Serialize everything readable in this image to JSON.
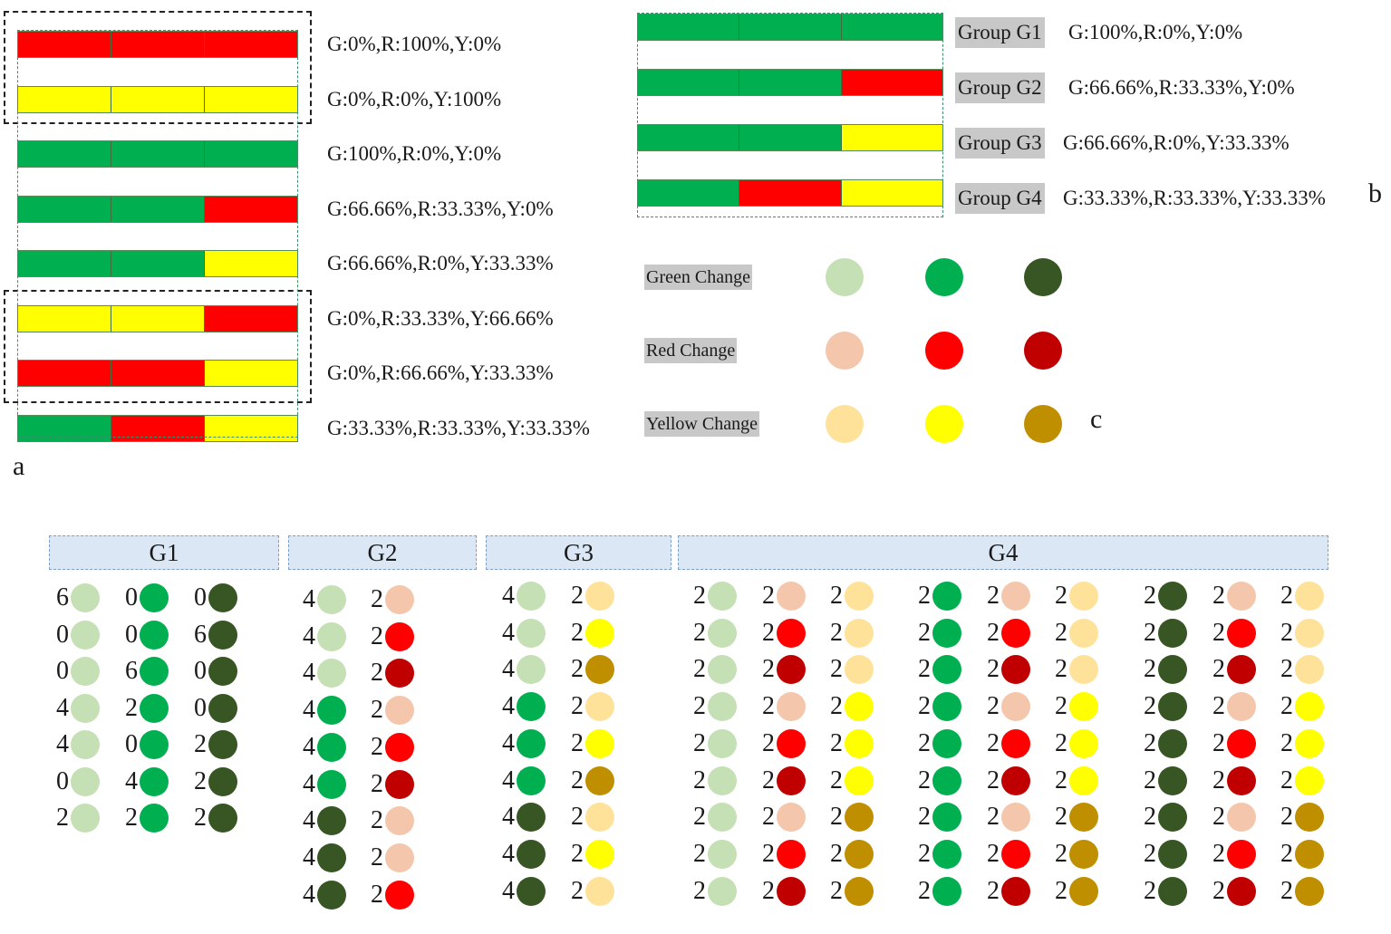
{
  "colors": {
    "green": "#00b050",
    "red": "#ff0000",
    "yellow": "#ffff00",
    "light_green": "#c5e0b4",
    "dark_green": "#375623",
    "light_red": "#f4c7ad",
    "dark_red": "#c00000",
    "light_yellow": "#ffe29a",
    "dark_yellow": "#bf8f00",
    "header_fill": "#dbe7f4"
  },
  "panel_a": {
    "letter": "a",
    "rows": [
      {
        "segments": [
          "red",
          "red",
          "red"
        ],
        "label": "G:0%,R:100%,Y:0%"
      },
      {
        "segments": [
          "yellow",
          "yellow",
          "yellow"
        ],
        "label": "G:0%,R:0%,Y:100%"
      },
      {
        "segments": [
          "green",
          "green",
          "green"
        ],
        "label": "G:100%,R:0%,Y:0%"
      },
      {
        "segments": [
          "green",
          "green",
          "red"
        ],
        "label": "G:66.66%,R:33.33%,Y:0%"
      },
      {
        "segments": [
          "green",
          "green",
          "yellow"
        ],
        "label": "G:66.66%,R:0%,Y:33.33%"
      },
      {
        "segments": [
          "yellow",
          "yellow",
          "red"
        ],
        "label": "G:0%,R:33.33%,Y:66.66%"
      },
      {
        "segments": [
          "red",
          "red",
          "yellow"
        ],
        "label": "G:0%,R:66.66%,Y:33.33%"
      },
      {
        "segments": [
          "green",
          "red",
          "yellow"
        ],
        "label": "G:33.33%,R:33.33%,Y:33.33%"
      }
    ]
  },
  "panel_b": {
    "letter": "b",
    "groups": [
      {
        "segments": [
          "green",
          "green",
          "green"
        ],
        "name": "Group G1",
        "label": "G:100%,R:0%,Y:0%"
      },
      {
        "segments": [
          "green",
          "green",
          "red"
        ],
        "name": "Group G2",
        "label": "G:66.66%,R:33.33%,Y:0%"
      },
      {
        "segments": [
          "green",
          "green",
          "yellow"
        ],
        "name": "Group G3",
        "label": "G:66.66%,R:0%,Y:33.33%"
      },
      {
        "segments": [
          "green",
          "red",
          "yellow"
        ],
        "name": "Group G4",
        "label": "G:33.33%,R:33.33%,Y:33.33%"
      }
    ]
  },
  "panel_c": {
    "letter": "c",
    "changes": [
      {
        "label": "Green Change",
        "dots": [
          "light_green",
          "green",
          "dark_green"
        ]
      },
      {
        "label": "Red Change",
        "dots": [
          "light_red",
          "red",
          "dark_red"
        ]
      },
      {
        "label": "Yellow Change",
        "dots": [
          "light_yellow",
          "yellow",
          "dark_yellow"
        ]
      }
    ]
  },
  "table": {
    "headers": [
      "G1",
      "G2",
      "G3",
      "G4"
    ],
    "g1": [
      [
        [
          "6",
          "light_green"
        ],
        [
          "0",
          "green"
        ],
        [
          "0",
          "dark_green"
        ]
      ],
      [
        [
          "0",
          "light_green"
        ],
        [
          "0",
          "green"
        ],
        [
          "6",
          "dark_green"
        ]
      ],
      [
        [
          "0",
          "light_green"
        ],
        [
          "6",
          "green"
        ],
        [
          "0",
          "dark_green"
        ]
      ],
      [
        [
          "4",
          "light_green"
        ],
        [
          "2",
          "green"
        ],
        [
          "0",
          "dark_green"
        ]
      ],
      [
        [
          "4",
          "light_green"
        ],
        [
          "0",
          "green"
        ],
        [
          "2",
          "dark_green"
        ]
      ],
      [
        [
          "0",
          "light_green"
        ],
        [
          "4",
          "green"
        ],
        [
          "2",
          "dark_green"
        ]
      ],
      [
        [
          "2",
          "light_green"
        ],
        [
          "2",
          "green"
        ],
        [
          "2",
          "dark_green"
        ]
      ]
    ],
    "g2": [
      [
        [
          "4",
          "light_green"
        ],
        [
          "2",
          "light_red"
        ]
      ],
      [
        [
          "4",
          "light_green"
        ],
        [
          "2",
          "red"
        ]
      ],
      [
        [
          "4",
          "light_green"
        ],
        [
          "2",
          "dark_red"
        ]
      ],
      [
        [
          "4",
          "green"
        ],
        [
          "2",
          "light_red"
        ]
      ],
      [
        [
          "4",
          "green"
        ],
        [
          "2",
          "red"
        ]
      ],
      [
        [
          "4",
          "green"
        ],
        [
          "2",
          "dark_red"
        ]
      ],
      [
        [
          "4",
          "dark_green"
        ],
        [
          "2",
          "light_red"
        ]
      ],
      [
        [
          "4",
          "dark_green"
        ],
        [
          "2",
          "light_red"
        ]
      ],
      [
        [
          "4",
          "dark_green"
        ],
        [
          "2",
          "red"
        ]
      ]
    ],
    "g3": [
      [
        [
          "4",
          "light_green"
        ],
        [
          "2",
          "light_yellow"
        ]
      ],
      [
        [
          "4",
          "light_green"
        ],
        [
          "2",
          "yellow"
        ]
      ],
      [
        [
          "4",
          "light_green"
        ],
        [
          "2",
          "dark_yellow"
        ]
      ],
      [
        [
          "4",
          "green"
        ],
        [
          "2",
          "light_yellow"
        ]
      ],
      [
        [
          "4",
          "green"
        ],
        [
          "2",
          "yellow"
        ]
      ],
      [
        [
          "4",
          "green"
        ],
        [
          "2",
          "dark_yellow"
        ]
      ],
      [
        [
          "4",
          "dark_green"
        ],
        [
          "2",
          "light_yellow"
        ]
      ],
      [
        [
          "4",
          "dark_green"
        ],
        [
          "2",
          "yellow"
        ]
      ],
      [
        [
          "4",
          "dark_green"
        ],
        [
          "2",
          "light_yellow"
        ]
      ]
    ],
    "g4_blocks": [
      {
        "green": "light_green",
        "rows": [
          [
            [
              "2",
              "light_green"
            ],
            [
              "2",
              "light_red"
            ],
            [
              "2",
              "light_yellow"
            ]
          ],
          [
            [
              "2",
              "light_green"
            ],
            [
              "2",
              "red"
            ],
            [
              "2",
              "light_yellow"
            ]
          ],
          [
            [
              "2",
              "light_green"
            ],
            [
              "2",
              "dark_red"
            ],
            [
              "2",
              "light_yellow"
            ]
          ],
          [
            [
              "2",
              "light_green"
            ],
            [
              "2",
              "light_red"
            ],
            [
              "2",
              "yellow"
            ]
          ],
          [
            [
              "2",
              "light_green"
            ],
            [
              "2",
              "red"
            ],
            [
              "2",
              "yellow"
            ]
          ],
          [
            [
              "2",
              "light_green"
            ],
            [
              "2",
              "dark_red"
            ],
            [
              "2",
              "yellow"
            ]
          ],
          [
            [
              "2",
              "light_green"
            ],
            [
              "2",
              "light_red"
            ],
            [
              "2",
              "dark_yellow"
            ]
          ],
          [
            [
              "2",
              "light_green"
            ],
            [
              "2",
              "red"
            ],
            [
              "2",
              "dark_yellow"
            ]
          ],
          [
            [
              "2",
              "light_green"
            ],
            [
              "2",
              "dark_red"
            ],
            [
              "2",
              "dark_yellow"
            ]
          ]
        ]
      },
      {
        "green": "green",
        "rows": [
          [
            [
              "2",
              "green"
            ],
            [
              "2",
              "light_red"
            ],
            [
              "2",
              "light_yellow"
            ]
          ],
          [
            [
              "2",
              "green"
            ],
            [
              "2",
              "red"
            ],
            [
              "2",
              "light_yellow"
            ]
          ],
          [
            [
              "2",
              "green"
            ],
            [
              "2",
              "dark_red"
            ],
            [
              "2",
              "light_yellow"
            ]
          ],
          [
            [
              "2",
              "green"
            ],
            [
              "2",
              "light_red"
            ],
            [
              "2",
              "yellow"
            ]
          ],
          [
            [
              "2",
              "green"
            ],
            [
              "2",
              "red"
            ],
            [
              "2",
              "yellow"
            ]
          ],
          [
            [
              "2",
              "green"
            ],
            [
              "2",
              "dark_red"
            ],
            [
              "2",
              "yellow"
            ]
          ],
          [
            [
              "2",
              "green"
            ],
            [
              "2",
              "light_red"
            ],
            [
              "2",
              "dark_yellow"
            ]
          ],
          [
            [
              "2",
              "green"
            ],
            [
              "2",
              "red"
            ],
            [
              "2",
              "dark_yellow"
            ]
          ],
          [
            [
              "2",
              "green"
            ],
            [
              "2",
              "dark_red"
            ],
            [
              "2",
              "dark_yellow"
            ]
          ]
        ]
      },
      {
        "green": "dark_green",
        "rows": [
          [
            [
              "2",
              "dark_green"
            ],
            [
              "2",
              "light_red"
            ],
            [
              "2",
              "light_yellow"
            ]
          ],
          [
            [
              "2",
              "dark_green"
            ],
            [
              "2",
              "red"
            ],
            [
              "2",
              "light_yellow"
            ]
          ],
          [
            [
              "2",
              "dark_green"
            ],
            [
              "2",
              "dark_red"
            ],
            [
              "2",
              "light_yellow"
            ]
          ],
          [
            [
              "2",
              "dark_green"
            ],
            [
              "2",
              "light_red"
            ],
            [
              "2",
              "yellow"
            ]
          ],
          [
            [
              "2",
              "dark_green"
            ],
            [
              "2",
              "red"
            ],
            [
              "2",
              "yellow"
            ]
          ],
          [
            [
              "2",
              "dark_green"
            ],
            [
              "2",
              "dark_red"
            ],
            [
              "2",
              "yellow"
            ]
          ],
          [
            [
              "2",
              "dark_green"
            ],
            [
              "2",
              "light_red"
            ],
            [
              "2",
              "dark_yellow"
            ]
          ],
          [
            [
              "2",
              "dark_green"
            ],
            [
              "2",
              "red"
            ],
            [
              "2",
              "dark_yellow"
            ]
          ],
          [
            [
              "2",
              "dark_green"
            ],
            [
              "2",
              "dark_red"
            ],
            [
              "2",
              "dark_yellow"
            ]
          ]
        ]
      }
    ]
  }
}
